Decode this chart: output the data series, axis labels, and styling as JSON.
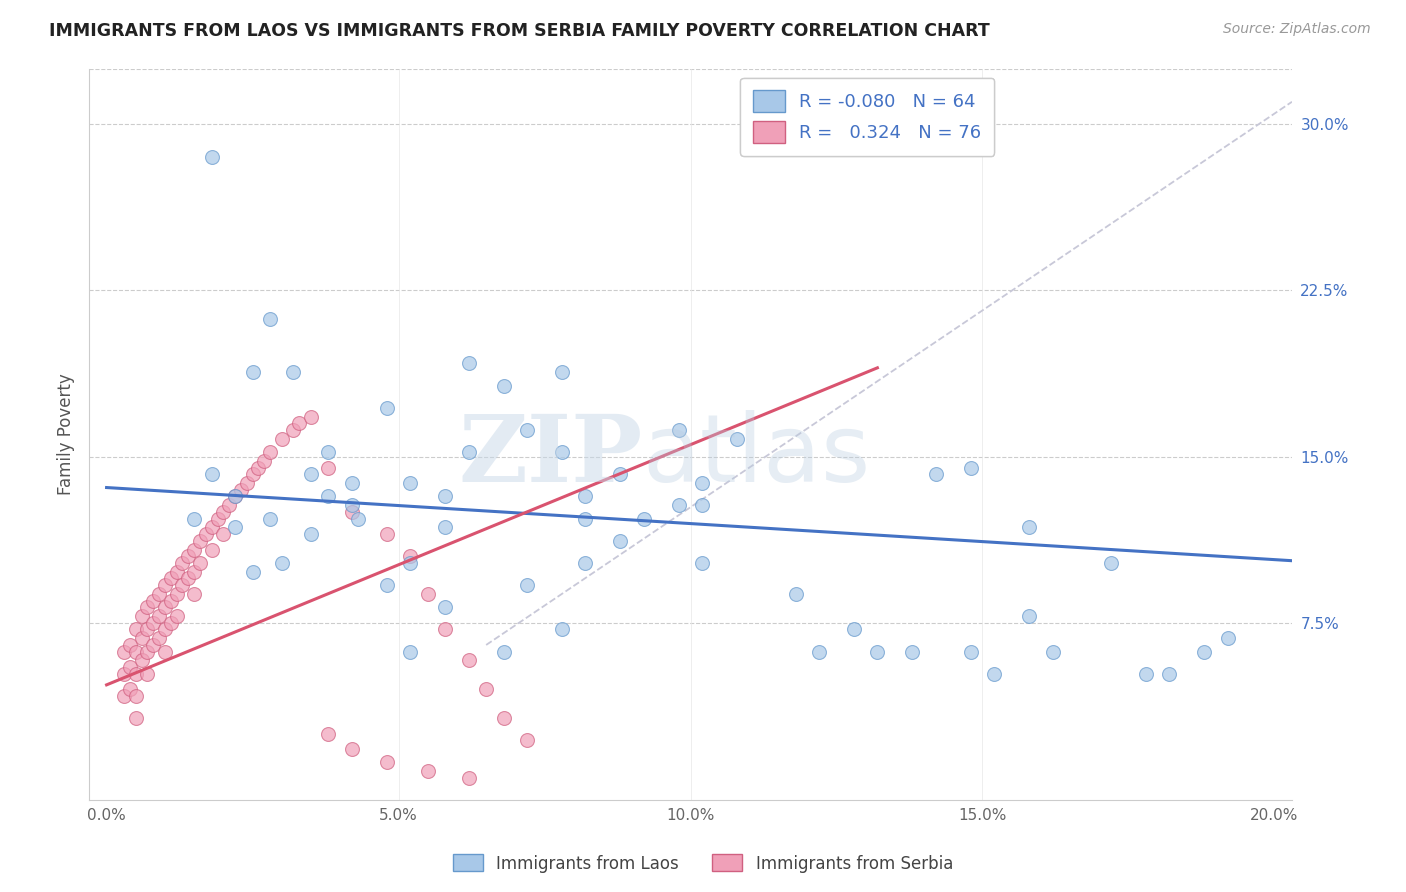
{
  "title": "IMMIGRANTS FROM LAOS VS IMMIGRANTS FROM SERBIA FAMILY POVERTY CORRELATION CHART",
  "source": "Source: ZipAtlas.com",
  "ylabel": "Family Poverty",
  "x_tick_labels": [
    "0.0%",
    "",
    "5.0%",
    "",
    "10.0%",
    "",
    "15.0%",
    "",
    "20.0%"
  ],
  "x_tick_pos": [
    0.0,
    0.025,
    0.05,
    0.075,
    0.1,
    0.125,
    0.15,
    0.175,
    0.2
  ],
  "x_tick_labels_shown": [
    "0.0%",
    "5.0%",
    "10.0%",
    "15.0%",
    "20.0%"
  ],
  "x_tick_pos_shown": [
    0.0,
    0.05,
    0.1,
    0.15,
    0.2
  ],
  "y_tick_labels": [
    "7.5%",
    "15.0%",
    "22.5%",
    "30.0%"
  ],
  "y_tick_pos": [
    0.075,
    0.15,
    0.225,
    0.3
  ],
  "xlim": [
    -0.003,
    0.203
  ],
  "ylim": [
    -0.005,
    0.325
  ],
  "color_laos": "#a8c8e8",
  "color_laos_edge": "#6699cc",
  "color_serbia": "#f0a0b8",
  "color_serbia_edge": "#d06080",
  "color_laos_line": "#4472c4",
  "color_serbia_line": "#d9536f",
  "color_dashed": "#c8c8d8",
  "watermark_zip": "ZIP",
  "watermark_atlas": "atlas",
  "laos_scatter_x": [
    0.018,
    0.035,
    0.038,
    0.035,
    0.028,
    0.032,
    0.025,
    0.018,
    0.022,
    0.015,
    0.022,
    0.028,
    0.038,
    0.042,
    0.048,
    0.052,
    0.058,
    0.043,
    0.048,
    0.052,
    0.058,
    0.042,
    0.03,
    0.025,
    0.062,
    0.068,
    0.078,
    0.072,
    0.062,
    0.078,
    0.082,
    0.088,
    0.082,
    0.088,
    0.092,
    0.098,
    0.098,
    0.102,
    0.108,
    0.082,
    0.072,
    0.058,
    0.052,
    0.078,
    0.068,
    0.102,
    0.102,
    0.118,
    0.122,
    0.128,
    0.132,
    0.138,
    0.148,
    0.152,
    0.158,
    0.162,
    0.142,
    0.158,
    0.172,
    0.178,
    0.182,
    0.188,
    0.192,
    0.148
  ],
  "laos_scatter_y": [
    0.285,
    0.115,
    0.152,
    0.142,
    0.212,
    0.188,
    0.188,
    0.142,
    0.132,
    0.122,
    0.118,
    0.122,
    0.132,
    0.138,
    0.172,
    0.138,
    0.132,
    0.122,
    0.092,
    0.102,
    0.118,
    0.128,
    0.102,
    0.098,
    0.192,
    0.182,
    0.188,
    0.162,
    0.152,
    0.152,
    0.132,
    0.142,
    0.122,
    0.112,
    0.122,
    0.162,
    0.128,
    0.138,
    0.158,
    0.102,
    0.092,
    0.082,
    0.062,
    0.072,
    0.062,
    0.128,
    0.102,
    0.088,
    0.062,
    0.072,
    0.062,
    0.062,
    0.062,
    0.052,
    0.078,
    0.062,
    0.142,
    0.118,
    0.102,
    0.052,
    0.052,
    0.062,
    0.068,
    0.145
  ],
  "serbia_scatter_x": [
    0.003,
    0.003,
    0.003,
    0.004,
    0.004,
    0.004,
    0.005,
    0.005,
    0.005,
    0.005,
    0.005,
    0.006,
    0.006,
    0.006,
    0.007,
    0.007,
    0.007,
    0.007,
    0.008,
    0.008,
    0.008,
    0.009,
    0.009,
    0.009,
    0.01,
    0.01,
    0.01,
    0.01,
    0.011,
    0.011,
    0.011,
    0.012,
    0.012,
    0.012,
    0.013,
    0.013,
    0.014,
    0.014,
    0.015,
    0.015,
    0.015,
    0.016,
    0.016,
    0.017,
    0.018,
    0.018,
    0.019,
    0.02,
    0.02,
    0.021,
    0.022,
    0.023,
    0.024,
    0.025,
    0.026,
    0.027,
    0.028,
    0.03,
    0.032,
    0.033,
    0.035,
    0.038,
    0.042,
    0.048,
    0.055,
    0.062,
    0.038,
    0.042,
    0.048,
    0.052,
    0.055,
    0.058,
    0.062,
    0.065,
    0.068,
    0.072
  ],
  "serbia_scatter_y": [
    0.062,
    0.052,
    0.042,
    0.065,
    0.055,
    0.045,
    0.072,
    0.062,
    0.052,
    0.042,
    0.032,
    0.078,
    0.068,
    0.058,
    0.082,
    0.072,
    0.062,
    0.052,
    0.085,
    0.075,
    0.065,
    0.088,
    0.078,
    0.068,
    0.092,
    0.082,
    0.072,
    0.062,
    0.095,
    0.085,
    0.075,
    0.098,
    0.088,
    0.078,
    0.102,
    0.092,
    0.105,
    0.095,
    0.108,
    0.098,
    0.088,
    0.112,
    0.102,
    0.115,
    0.118,
    0.108,
    0.122,
    0.125,
    0.115,
    0.128,
    0.132,
    0.135,
    0.138,
    0.142,
    0.145,
    0.148,
    0.152,
    0.158,
    0.162,
    0.165,
    0.168,
    0.025,
    0.018,
    0.012,
    0.008,
    0.005,
    0.145,
    0.125,
    0.115,
    0.105,
    0.088,
    0.072,
    0.058,
    0.045,
    0.032,
    0.022
  ],
  "laos_line_x": [
    0.0,
    0.203
  ],
  "laos_line_y": [
    0.136,
    0.103
  ],
  "serbia_line_x": [
    0.0,
    0.132
  ],
  "serbia_line_y": [
    0.047,
    0.19
  ],
  "dashed_line_x": [
    0.065,
    0.203
  ],
  "dashed_line_y": [
    0.065,
    0.31
  ]
}
